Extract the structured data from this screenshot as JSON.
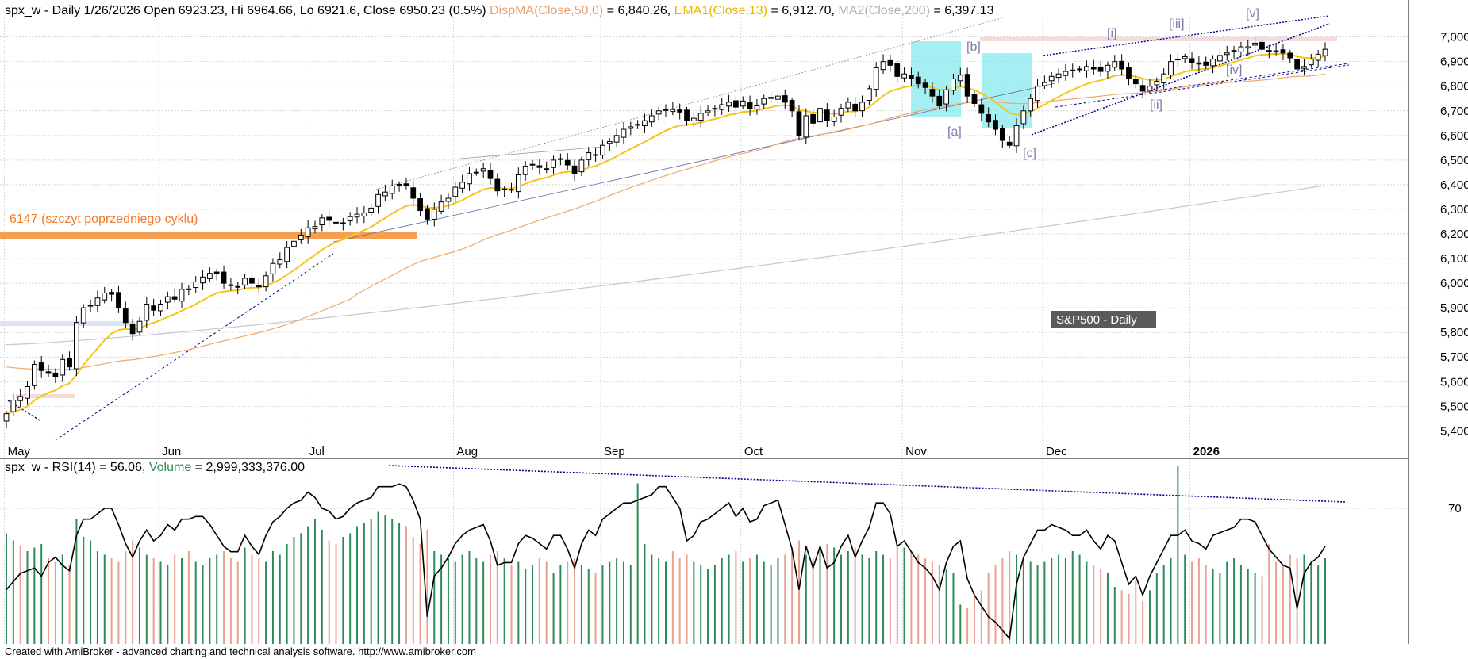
{
  "header": {
    "main": [
      {
        "text": "spx_w - Daily 1/26/2026 Open 6923.23, Hi 6964.66, Lo 6921.6, Close 6950.23 (0.5%) ",
        "color": "#000000"
      },
      {
        "text": "DispMA(Close,50,0)",
        "color": "#e8a06a"
      },
      {
        "text": " = 6,840.26, ",
        "color": "#000000"
      },
      {
        "text": "EMA1(Close,13)",
        "color": "#e6b800"
      },
      {
        "text": " = 6,912.70, ",
        "color": "#000000"
      },
      {
        "text": "MA2(Close,200)",
        "color": "#b0b0b0"
      },
      {
        "text": " = 6,397.13",
        "color": "#000000"
      }
    ],
    "lower": [
      {
        "text": "spx_w - RSI(14) = 56.06, ",
        "color": "#000000"
      },
      {
        "text": "Volume",
        "color": "#2e8b57"
      },
      {
        "text": " = 2,999,333,376.00",
        "color": "#000000"
      }
    ]
  },
  "annotations": {
    "prev_cycle_label": "6147 (szczyt poprzedniego cyklu)",
    "index_badge": "S&P500 - Daily",
    "footer": "Created with AmiBroker - advanced charting and technical analysis software. http://www.amibroker.com",
    "waves": [
      "[a]",
      "[b]",
      "[c]",
      "[i]",
      "[ii]",
      "[iii]",
      "[iv]",
      "[v]"
    ]
  },
  "colors": {
    "bull_candle": "#ffffff",
    "bear_candle": "#000000",
    "ema13": "#f5c518",
    "sma50": "#f0a868",
    "sma200": "#c8c8c8",
    "rsi": "#000000",
    "volume_up": "#2e8b57",
    "volume_down": "#e8a090",
    "wedge": "#00008b",
    "highlight_box": "#7fe8ec",
    "prev_cycle_band": "#f5a050"
  },
  "chart_data": [
    {
      "type": "candlestick",
      "name": "spx_w - Daily",
      "price_axis_ticks": [
        5400,
        5500,
        5600,
        5700,
        5800,
        5900,
        6000,
        6100,
        6200,
        6300,
        6400,
        6500,
        6600,
        6700,
        6800,
        6900,
        7000
      ],
      "price_axis_labels": [
        "5,400",
        "5,500",
        "5,600",
        "5,700",
        "5,800",
        "5,900",
        "6,000",
        "6,100",
        "6,200",
        "6,300",
        "6,400",
        "6,500",
        "6,600",
        "6,700",
        "6,800",
        "6,900",
        "7,000"
      ],
      "ylim": [
        5340,
        7060
      ],
      "month_labels": [
        "May",
        "Jun",
        "Jul",
        "Aug",
        "Sep",
        "Oct",
        "Nov",
        "Dec",
        "2026"
      ],
      "month_start_index": [
        0,
        22,
        43,
        64,
        85,
        105,
        128,
        148,
        169
      ],
      "last_bar": {
        "date": "1/26/2026",
        "open": 6923.23,
        "high": 6964.66,
        "low": 6921.6,
        "close": 6950.23
      },
      "ema13_last": 6912.7,
      "sma50_last": 6840.26,
      "sma200_last": 6397.13,
      "closes": [
        5470,
        5525,
        5540,
        5580,
        5670,
        5645,
        5640,
        5620,
        5690,
        5660,
        5840,
        5900,
        5910,
        5940,
        5960,
        5955,
        5900,
        5840,
        5795,
        5845,
        5915,
        5890,
        5915,
        5945,
        5935,
        5975,
        5975,
        6005,
        6025,
        6040,
        6040,
        6000,
        5990,
        5985,
        6020,
        6000,
        5985,
        6030,
        6080,
        6095,
        6145,
        6170,
        6195,
        6225,
        6230,
        6265,
        6255,
        6245,
        6245,
        6270,
        6280,
        6285,
        6305,
        6360,
        6370,
        6395,
        6400,
        6395,
        6345,
        6295,
        6260,
        6300,
        6330,
        6345,
        6390,
        6410,
        6445,
        6450,
        6465,
        6425,
        6375,
        6380,
        6380,
        6440,
        6475,
        6480,
        6470,
        6465,
        6500,
        6505,
        6480,
        6445,
        6500,
        6530,
        6520,
        6560,
        6575,
        6600,
        6625,
        6635,
        6645,
        6660,
        6680,
        6700,
        6705,
        6705,
        6695,
        6660,
        6670,
        6690,
        6700,
        6710,
        6725,
        6735,
        6715,
        6740,
        6710,
        6720,
        6750,
        6755,
        6760,
        6735,
        6700,
        6600,
        6680,
        6650,
        6710,
        6660,
        6675,
        6710,
        6735,
        6700,
        6735,
        6790,
        6875,
        6900,
        6885,
        6840,
        6850,
        6830,
        6810,
        6795,
        6760,
        6720,
        6785,
        6830,
        6845,
        6760,
        6730,
        6690,
        6655,
        6625,
        6580,
        6560,
        6640,
        6700,
        6750,
        6800,
        6815,
        6840,
        6850,
        6860,
        6865,
        6870,
        6880,
        6870,
        6860,
        6885,
        6900,
        6870,
        6830,
        6810,
        6780,
        6800,
        6820,
        6850,
        6900,
        6910,
        6920,
        6895,
        6890,
        6885,
        6910,
        6925,
        6935,
        6945,
        6960,
        6960,
        6975,
        6950,
        6945,
        6940,
        6935,
        6915,
        6870,
        6880,
        6910,
        6930,
        6950
      ],
      "rsi_ticks": [
        70
      ],
      "rsi_last": 56.06,
      "rsi": [
        40,
        43,
        46,
        47,
        48,
        45,
        50,
        52,
        49,
        47,
        60,
        66,
        66,
        68,
        70,
        70,
        64,
        57,
        52,
        58,
        62,
        58,
        60,
        64,
        62,
        66,
        66,
        67,
        67,
        64,
        60,
        56,
        54,
        54,
        60,
        56,
        53,
        60,
        65,
        67,
        70,
        72,
        73,
        76,
        74,
        70,
        69,
        66,
        67,
        70,
        72,
        73,
        74,
        78,
        78,
        78,
        79,
        78,
        73,
        66,
        30,
        45,
        48,
        52,
        57,
        60,
        62,
        63,
        64,
        58,
        49,
        50,
        50,
        57,
        60,
        59,
        57,
        55,
        60,
        60,
        55,
        48,
        57,
        62,
        60,
        66,
        68,
        70,
        72,
        72,
        73,
        74,
        75,
        78,
        78,
        74,
        70,
        58,
        60,
        65,
        66,
        68,
        70,
        72,
        67,
        70,
        65,
        66,
        71,
        72,
        73,
        64,
        55,
        40,
        56,
        48,
        56,
        48,
        50,
        56,
        60,
        52,
        58,
        63,
        72,
        72,
        68,
        56,
        58,
        54,
        50,
        48,
        45,
        40,
        50,
        56,
        58,
        44,
        38,
        34,
        30,
        28,
        25,
        22,
        42,
        52,
        57,
        62,
        62,
        64,
        63,
        62,
        60,
        60,
        62,
        58,
        55,
        60,
        58,
        50,
        42,
        45,
        38,
        45,
        50,
        55,
        60,
        60,
        62,
        58,
        57,
        55,
        60,
        61,
        62,
        63,
        66,
        66,
        65,
        60,
        55,
        52,
        49,
        48,
        33,
        46,
        50,
        52,
        56
      ],
      "volume_up": [
        true,
        true,
        false,
        true,
        true,
        true,
        false,
        false,
        true,
        false,
        true,
        true,
        true,
        true,
        true,
        false,
        false,
        false,
        false,
        true,
        true,
        false,
        true,
        true,
        false,
        true,
        false,
        true,
        true,
        true,
        true,
        false,
        false,
        false,
        true,
        false,
        false,
        true,
        true,
        true,
        true,
        true,
        true,
        true,
        true,
        true,
        false,
        false,
        true,
        true,
        true,
        true,
        true,
        true,
        true,
        true,
        true,
        false,
        false,
        false,
        false,
        true,
        true,
        true,
        true,
        true,
        true,
        true,
        true,
        false,
        false,
        true,
        false,
        true,
        true,
        true,
        false,
        false,
        true,
        true,
        false,
        false,
        true,
        true,
        false,
        true,
        true,
        true,
        true,
        true,
        true,
        true,
        true,
        true,
        true,
        false,
        false,
        false,
        true,
        true,
        true,
        true,
        true,
        true,
        false,
        true,
        false,
        true,
        true,
        true,
        true,
        false,
        false,
        false,
        true,
        false,
        true,
        false,
        true,
        true,
        true,
        false,
        true,
        true,
        true,
        true,
        false,
        false,
        true,
        false,
        false,
        false,
        false,
        false,
        true,
        true,
        true,
        false,
        false,
        false,
        false,
        false,
        false,
        false,
        true,
        true,
        true,
        true,
        true,
        true,
        true,
        true,
        true,
        true,
        true,
        false,
        false,
        true,
        true,
        false,
        false,
        false,
        false,
        true,
        true,
        true,
        true,
        true,
        true,
        false,
        false,
        false,
        true,
        true,
        true,
        true,
        true,
        true,
        true,
        false,
        false,
        false,
        false,
        false,
        false,
        true,
        true,
        true,
        true
      ],
      "volume": [
        62,
        58,
        55,
        52,
        54,
        56,
        48,
        46,
        50,
        44,
        70,
        60,
        58,
        52,
        50,
        48,
        46,
        52,
        58,
        54,
        50,
        48,
        46,
        44,
        50,
        48,
        52,
        46,
        44,
        48,
        50,
        52,
        48,
        46,
        54,
        50,
        48,
        46,
        52,
        50,
        56,
        60,
        62,
        66,
        70,
        64,
        58,
        56,
        60,
        62,
        66,
        68,
        70,
        74,
        72,
        70,
        68,
        66,
        60,
        56,
        64,
        52,
        50,
        48,
        46,
        50,
        52,
        48,
        46,
        50,
        52,
        48,
        44,
        46,
        42,
        44,
        48,
        46,
        40,
        44,
        46,
        48,
        44,
        42,
        40,
        44,
        46,
        48,
        46,
        44,
        90,
        56,
        50,
        48,
        46,
        52,
        48,
        50,
        46,
        44,
        42,
        44,
        48,
        50,
        52,
        46,
        48,
        50,
        46,
        44,
        48,
        50,
        54,
        58,
        50,
        48,
        52,
        56,
        54,
        50,
        52,
        54,
        50,
        48,
        52,
        50,
        48,
        56,
        54,
        52,
        50,
        48,
        46,
        44,
        42,
        40,
        22,
        20,
        26,
        30,
        40,
        44,
        48,
        52,
        50,
        48,
        46,
        44,
        46,
        48,
        50,
        48,
        52,
        50,
        46,
        44,
        42,
        40,
        32,
        30,
        28,
        36,
        24,
        30,
        40,
        44,
        48,
        100,
        50,
        46,
        48,
        44,
        42,
        40,
        46,
        48,
        44,
        42,
        40,
        38,
        56,
        46,
        44,
        50,
        48,
        50,
        46,
        44,
        48
      ]
    }
  ]
}
